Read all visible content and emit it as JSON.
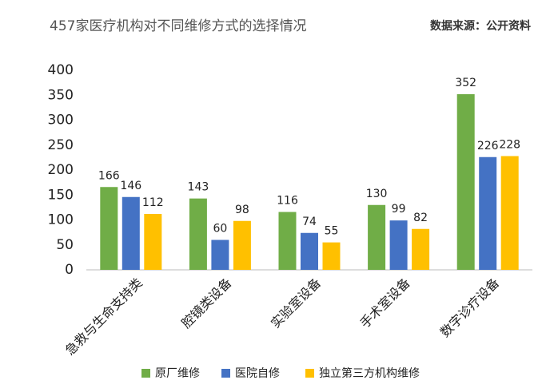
{
  "chart_data": {
    "type": "bar",
    "title": "457家医疗机构对不同维修方式的选择情况",
    "source": "数据来源：公开资料",
    "categories": [
      "急救与生命支持类",
      "腔镜类设备",
      "实验室设备",
      "手术室设备",
      "数字诊疗设备"
    ],
    "series": [
      {
        "name": "原厂维修",
        "color": "#70ad47",
        "values": [
          166,
          143,
          116,
          130,
          352
        ]
      },
      {
        "name": "医院自修",
        "color": "#4472c4",
        "values": [
          146,
          60,
          74,
          99,
          226
        ]
      },
      {
        "name": "独立第三方机构维修",
        "color": "#ffc000",
        "values": [
          112,
          98,
          55,
          82,
          228
        ]
      }
    ],
    "ylim": [
      0,
      400
    ],
    "yticks": [
      0,
      50,
      100,
      150,
      200,
      250,
      300,
      350,
      400
    ],
    "grid": false,
    "legend": "bottom"
  }
}
